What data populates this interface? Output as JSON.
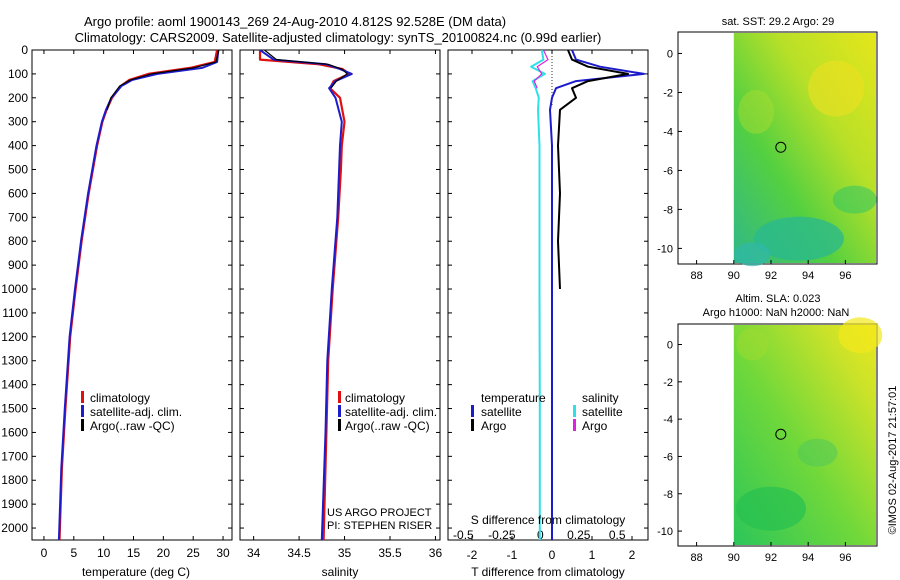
{
  "header": {
    "line1": "Argo profile: aoml 1900143_269 24-Aug-2010 4.812S 92.528E (DM data)",
    "line2": "Climatology: CARS2009. Satellite-adjusted climatology: synTS_20100824.nc (0.99d earlier)"
  },
  "credit": "©IMOS 02-Aug-2017 21:57:01",
  "colors": {
    "climatology": "#e01010",
    "satellite": "#1c1ccc",
    "argo": "#000000",
    "salinity_sat": "#30e0e8",
    "salinity_argo": "#e020e0",
    "map_dark": "#20b060",
    "map_light": "#e8e81a"
  },
  "chart_data": [
    {
      "type": "line",
      "title": "",
      "xlabel": "temperature (deg C)",
      "ylabel": "",
      "xlim": [
        -2,
        31.5
      ],
      "ylim": [
        2050,
        0
      ],
      "xticks": [
        0,
        5,
        10,
        15,
        20,
        25,
        30
      ],
      "yticks": [
        0,
        100,
        200,
        300,
        400,
        500,
        600,
        700,
        800,
        900,
        1000,
        1100,
        1200,
        1300,
        1400,
        1500,
        1600,
        1700,
        1800,
        1900,
        2000
      ],
      "legend": [
        "climatology",
        "satellite-adj. clim.",
        "Argo(..raw -QC)"
      ],
      "legend_position": "lower-middle",
      "depth": [
        0,
        50,
        75,
        100,
        125,
        150,
        200,
        250,
        300,
        400,
        500,
        600,
        800,
        1000,
        1200,
        1500,
        1750,
        2050
      ],
      "series": [
        {
          "name": "climatology",
          "values": [
            29.0,
            28.6,
            24.5,
            17.5,
            14.3,
            12.9,
            11.4,
            10.5,
            9.8,
            8.9,
            8.2,
            7.5,
            6.3,
            5.3,
            4.4,
            3.6,
            3.0,
            2.6
          ]
        },
        {
          "name": "satellite-adj. clim.",
          "values": [
            29.2,
            29.0,
            26.5,
            19.0,
            14.8,
            13.0,
            11.3,
            10.4,
            9.7,
            8.8,
            8.1,
            7.4,
            6.2,
            5.2,
            4.3,
            3.5,
            2.9,
            2.5
          ]
        },
        {
          "name": "Argo(..raw -QC)",
          "values": [
            29.3,
            28.8,
            25.0,
            18.0,
            14.5,
            12.7,
            11.2,
            10.6,
            null,
            null,
            null,
            null,
            null,
            null,
            null,
            null,
            null,
            null
          ]
        }
      ]
    },
    {
      "type": "line",
      "title": "",
      "xlabel": "salinity",
      "ylabel": "",
      "xlim": [
        33.85,
        36.05
      ],
      "ylim": [
        2050,
        0
      ],
      "xticks": [
        34,
        34.5,
        35,
        35.5,
        36
      ],
      "legend": [
        "climatology",
        "satellite-adj. clim.",
        "Argo(..raw -QC)"
      ],
      "legend_position": "lower-middle",
      "annotations": [
        "US ARGO PROJECT",
        "PI: STEPHEN RISER"
      ],
      "depth": [
        0,
        40,
        60,
        80,
        100,
        130,
        160,
        200,
        300,
        400,
        500,
        700,
        1000,
        1300,
        1600,
        2050
      ],
      "series": [
        {
          "name": "climatology",
          "values": [
            34.07,
            34.07,
            34.72,
            34.98,
            35.05,
            34.88,
            34.84,
            34.95,
            35.0,
            34.97,
            34.96,
            34.93,
            34.87,
            34.82,
            34.8,
            34.77
          ]
        },
        {
          "name": "satellite-adj. clim.",
          "values": [
            34.07,
            34.22,
            34.8,
            34.95,
            35.08,
            34.9,
            34.83,
            34.9,
            34.97,
            34.95,
            34.94,
            34.92,
            34.86,
            34.81,
            34.79,
            34.75
          ]
        },
        {
          "name": "Argo(..raw -QC)",
          "values": [
            34.12,
            34.25,
            34.82,
            34.97,
            35.03,
            34.91,
            34.85,
            null,
            null,
            null,
            null,
            null,
            null,
            null,
            null,
            null
          ]
        }
      ]
    },
    {
      "type": "line",
      "title": "",
      "xlabel": "T difference from climatology",
      "xlabel_top": "S difference from climatology",
      "xlim": [
        -2.6,
        2.4
      ],
      "xlim_salinity": [
        -0.6,
        0.7
      ],
      "ylim": [
        2050,
        0
      ],
      "xticks": [
        -2,
        -1,
        0,
        1,
        2
      ],
      "xticks_salinity": [
        -0.5,
        -0.25,
        0,
        0.25,
        0.5
      ],
      "xtick_labels_salinity": [
        "-0.5",
        "-0.25",
        "0",
        "0.25",
        "0.5"
      ],
      "legend_temperature_title": "temperature",
      "legend_salinity_title": "salinity",
      "legend": [
        "satellite",
        "Argo",
        "satellite",
        "Argo"
      ],
      "depth": [
        0,
        40,
        70,
        100,
        130,
        160,
        200,
        250,
        400,
        600,
        800,
        1000,
        1500,
        2050
      ],
      "series": [
        {
          "name": "T satellite",
          "values": [
            0.5,
            0.6,
            1.2,
            2.3,
            0.6,
            0.1,
            0.0,
            -0.05,
            0.0,
            0.0,
            0.0,
            0.0,
            0.0,
            0.0
          ]
        },
        {
          "name": "T Argo",
          "values": [
            0.4,
            0.5,
            0.9,
            1.9,
            0.9,
            0.5,
            0.6,
            0.2,
            0.15,
            0.2,
            0.15,
            0.2,
            null,
            null
          ]
        },
        {
          "name": "S satellite",
          "values": [
            0.01,
            0.02,
            -0.06,
            0.03,
            -0.05,
            -0.03,
            -0.01,
            -0.015,
            -0.005,
            -0.005,
            -0.005,
            -0.005,
            -0.003,
            -0.003
          ]
        },
        {
          "name": "S Argo",
          "values": [
            0.02,
            0.05,
            -0.02,
            0.01,
            -0.04,
            -0.02,
            null,
            null,
            null,
            null,
            null,
            null,
            null,
            null
          ]
        }
      ]
    },
    {
      "type": "heatmap",
      "title": "sat. SST: 29.2 Argo: 29",
      "xlim": [
        87,
        97.7
      ],
      "ylim": [
        -10.8,
        1.1
      ],
      "xticks": [
        88,
        90,
        92,
        94,
        96
      ],
      "yticks": [
        0,
        -2,
        -4,
        -6,
        -8,
        -10
      ],
      "marker": {
        "lon": 92.528,
        "lat": -4.812
      },
      "data_extent_lon": [
        90,
        97.7
      ]
    },
    {
      "type": "heatmap",
      "title": "Altim. SLA: 0.023",
      "subtitle": "Argo h1000: NaN h2000: NaN",
      "xlim": [
        87,
        97.7
      ],
      "ylim": [
        -10.8,
        1.1
      ],
      "xticks": [
        88,
        90,
        92,
        94,
        96
      ],
      "yticks": [
        0,
        -2,
        -4,
        -6,
        -8,
        -10
      ],
      "marker": {
        "lon": 92.528,
        "lat": -4.812
      },
      "data_extent_lon": [
        90,
        97.7
      ]
    }
  ]
}
